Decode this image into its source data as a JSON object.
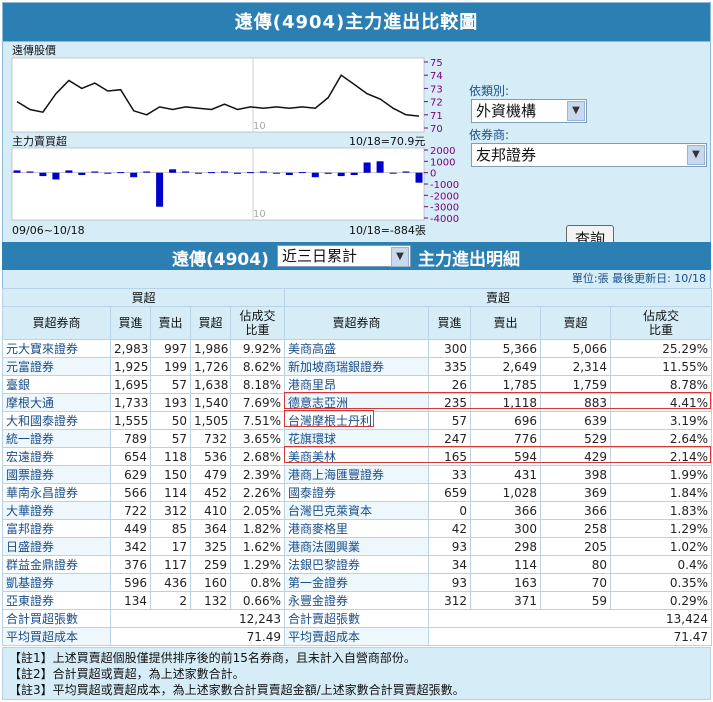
{
  "title": "遠傳(4904)主力進出比較圖",
  "chart": {
    "price_label": "遠傳股價",
    "main_label": "主力賣買超",
    "price_info": "10/18=70.9元",
    "net_info": "10/18=-884張",
    "date_range": "09/06~10/18",
    "watermark": "10",
    "price_ticks": [
      "75",
      "74",
      "73",
      "72",
      "71",
      "70"
    ],
    "net_ticks": [
      "2000",
      "1000",
      "0",
      "-1000",
      "-2000",
      "-3000",
      "-4000"
    ],
    "price_series": [
      72.0,
      71.4,
      71.2,
      72.6,
      73.6,
      73.0,
      73.4,
      72.8,
      72.9,
      71.3,
      71.0,
      71.6,
      71.4,
      71.6,
      71.5,
      71.4,
      71.8,
      71.4,
      71.6,
      71.5,
      71.6,
      71.5,
      71.6,
      71.5,
      72.3,
      74.0,
      73.3,
      72.6,
      72.2,
      71.5,
      71.0,
      70.9
    ],
    "net_series": [
      200,
      100,
      -300,
      -600,
      200,
      -200,
      100,
      0,
      50,
      -400,
      100,
      -3000,
      300,
      100,
      0,
      50,
      100,
      -100,
      50,
      100,
      0,
      -200,
      50,
      -400,
      -100,
      -300,
      -200,
      900,
      1000,
      0,
      100,
      -884
    ]
  },
  "controls": {
    "category_label": "依類別:",
    "category_value": "外資機構",
    "broker_label": "依券商:",
    "broker_value": "友邦證券",
    "query_button": "查詢"
  },
  "detail": {
    "stock": "遠傳(4904)",
    "period": "近三日累計",
    "title": "主力進出明細",
    "unit_line": "單位:張  最後更新日: 10/18"
  },
  "table": {
    "buy_group": "買超",
    "sell_group": "賣超",
    "buy_headers": [
      "買超券商",
      "買進",
      "賣出",
      "買超",
      "佔成交比重"
    ],
    "sell_headers": [
      "賣超券商",
      "買進",
      "賣出",
      "賣超",
      "佔成交比重"
    ],
    "rows": [
      {
        "bb": "元大寶來證券",
        "bi": "2,983",
        "bo": "997",
        "bn": "1,986",
        "bp": "9.92%",
        "sb": "美商高盛",
        "si": "300",
        "so": "5,366",
        "sn": "5,066",
        "sp": "25.29%"
      },
      {
        "bb": "元富證券",
        "bi": "1,925",
        "bo": "199",
        "bn": "1,726",
        "bp": "8.62%",
        "sb": "新加坡商瑞銀證券",
        "si": "335",
        "so": "2,649",
        "sn": "2,314",
        "sp": "11.55%"
      },
      {
        "bb": "臺銀",
        "bi": "1,695",
        "bo": "57",
        "bn": "1,638",
        "bp": "8.18%",
        "sb": "港商里昂",
        "si": "26",
        "so": "1,785",
        "sn": "1,759",
        "sp": "8.78%"
      },
      {
        "bb": "摩根大通",
        "bi": "1,733",
        "bo": "193",
        "bn": "1,540",
        "bp": "7.69%",
        "sb": "德意志亞洲",
        "si": "235",
        "so": "1,118",
        "sn": "883",
        "sp": "4.41%"
      },
      {
        "bb": "大和國泰證券",
        "bi": "1,555",
        "bo": "50",
        "bn": "1,505",
        "bp": "7.51%",
        "sb": "台灣摩根士丹利",
        "si": "57",
        "so": "696",
        "sn": "639",
        "sp": "3.19%"
      },
      {
        "bb": "統一證券",
        "bi": "789",
        "bo": "57",
        "bn": "732",
        "bp": "3.65%",
        "sb": "花旗環球",
        "si": "247",
        "so": "776",
        "sn": "529",
        "sp": "2.64%"
      },
      {
        "bb": "宏遠證券",
        "bi": "654",
        "bo": "118",
        "bn": "536",
        "bp": "2.68%",
        "sb": "美商美林",
        "si": "165",
        "so": "594",
        "sn": "429",
        "sp": "2.14%"
      },
      {
        "bb": "國票證券",
        "bi": "629",
        "bo": "150",
        "bn": "479",
        "bp": "2.39%",
        "sb": "港商上海匯豐證券",
        "si": "33",
        "so": "431",
        "sn": "398",
        "sp": "1.99%"
      },
      {
        "bb": "華南永昌證券",
        "bi": "566",
        "bo": "114",
        "bn": "452",
        "bp": "2.26%",
        "sb": "國泰證券",
        "si": "659",
        "so": "1,028",
        "sn": "369",
        "sp": "1.84%"
      },
      {
        "bb": "大華證券",
        "bi": "722",
        "bo": "312",
        "bn": "410",
        "bp": "2.05%",
        "sb": "台灣巴克萊資本",
        "si": "0",
        "so": "366",
        "sn": "366",
        "sp": "1.83%"
      },
      {
        "bb": "富邦證券",
        "bi": "449",
        "bo": "85",
        "bn": "364",
        "bp": "1.82%",
        "sb": "港商麥格里",
        "si": "42",
        "so": "300",
        "sn": "258",
        "sp": "1.29%"
      },
      {
        "bb": "日盛證券",
        "bi": "342",
        "bo": "17",
        "bn": "325",
        "bp": "1.62%",
        "sb": "港商法國興業",
        "si": "93",
        "so": "298",
        "sn": "205",
        "sp": "1.02%"
      },
      {
        "bb": "群益金鼎證券",
        "bi": "376",
        "bo": "117",
        "bn": "259",
        "bp": "1.29%",
        "sb": "法銀巴黎證券",
        "si": "34",
        "so": "114",
        "sn": "80",
        "sp": "0.4%"
      },
      {
        "bb": "凱基證券",
        "bi": "596",
        "bo": "436",
        "bn": "160",
        "bp": "0.8%",
        "sb": "第一金證券",
        "si": "93",
        "so": "163",
        "sn": "70",
        "sp": "0.35%"
      },
      {
        "bb": "亞東證券",
        "bi": "134",
        "bo": "2",
        "bn": "132",
        "bp": "0.66%",
        "sb": "永豐金證券",
        "si": "312",
        "so": "371",
        "sn": "59",
        "sp": "0.29%"
      }
    ],
    "total_buy_label": "合計買超張數",
    "total_buy_value": "12,243",
    "total_sell_label": "合計賣超張數",
    "total_sell_value": "13,424",
    "avg_buy_label": "平均買超成本",
    "avg_buy_value": "71.49",
    "avg_sell_label": "平均賣超成本",
    "avg_sell_value": "71.47"
  },
  "notes": [
    "【註1】上述買賣超個股僅提供排序後的前15名券商，且未計入自營商部份。",
    "【註2】合計買超或賣超，為上述家數合計。",
    "【註3】平均買超或賣超成本，為上述家數合計買賣超金額/上述家數合計買賣超張數。"
  ],
  "colors": {
    "header_bg": "#2c7fb3",
    "chart_bg": "#d6ecf7",
    "price_line": "#111111",
    "bar": "#0000cc",
    "axis_text": "#800080",
    "highlight": "#d23a3a"
  }
}
